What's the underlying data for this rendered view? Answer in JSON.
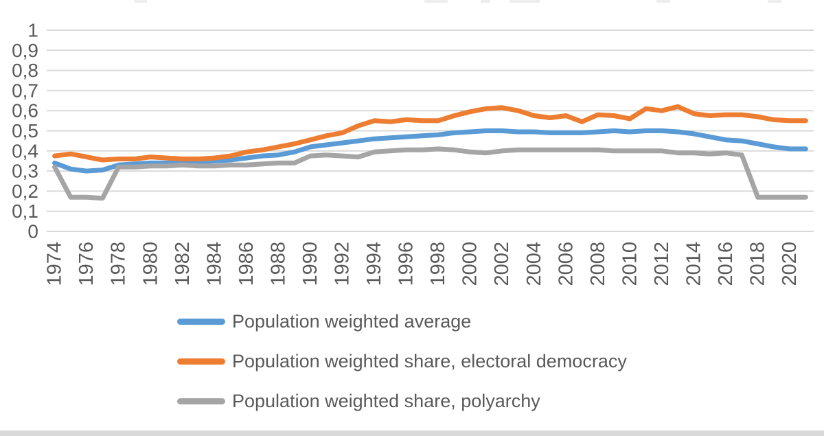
{
  "chart_data": {
    "type": "line",
    "title": "",
    "x": [
      1974,
      1975,
      1976,
      1977,
      1978,
      1979,
      1980,
      1981,
      1982,
      1983,
      1984,
      1985,
      1986,
      1987,
      1988,
      1989,
      1990,
      1991,
      1992,
      1993,
      1994,
      1995,
      1996,
      1997,
      1998,
      1999,
      2000,
      2001,
      2002,
      2003,
      2004,
      2005,
      2006,
      2007,
      2008,
      2009,
      2010,
      2011,
      2012,
      2013,
      2014,
      2015,
      2016,
      2017,
      2018,
      2019,
      2020,
      2021
    ],
    "x_tick_labels": [
      "1974",
      "1976",
      "1978",
      "1980",
      "1982",
      "1984",
      "1986",
      "1988",
      "1990",
      "1992",
      "1994",
      "1996",
      "1998",
      "2000",
      "2002",
      "2004",
      "2006",
      "2008",
      "2010",
      "2012",
      "2014",
      "2016",
      "2018",
      "2020"
    ],
    "y_tick_labels": [
      "1",
      "0,9",
      "0,8",
      "0,7",
      "0,6",
      "0,5",
      "0,4",
      "0,3",
      "0,2",
      "0,1",
      "0"
    ],
    "y_tick_values": [
      1,
      0.9,
      0.8,
      0.7,
      0.6,
      0.5,
      0.4,
      0.3,
      0.2,
      0.1,
      0
    ],
    "ylim": [
      0,
      1
    ],
    "grid": "horizontal",
    "legend_position": "bottom-left",
    "decimal_separator": ",",
    "series": [
      {
        "name": "Population weighted average",
        "color": "#5B9BD5",
        "values": [
          0.34,
          0.31,
          0.3,
          0.305,
          0.33,
          0.335,
          0.34,
          0.34,
          0.345,
          0.345,
          0.35,
          0.355,
          0.365,
          0.375,
          0.38,
          0.395,
          0.42,
          0.43,
          0.44,
          0.45,
          0.46,
          0.465,
          0.47,
          0.475,
          0.48,
          0.49,
          0.495,
          0.5,
          0.5,
          0.495,
          0.495,
          0.49,
          0.49,
          0.49,
          0.495,
          0.5,
          0.495,
          0.5,
          0.5,
          0.495,
          0.485,
          0.47,
          0.455,
          0.45,
          0.435,
          0.42,
          0.41,
          0.41
        ]
      },
      {
        "name": "Population weighted share, electoral democracy",
        "color": "#ED7D31",
        "values": [
          0.375,
          0.385,
          0.37,
          0.355,
          0.36,
          0.36,
          0.37,
          0.365,
          0.36,
          0.36,
          0.365,
          0.375,
          0.395,
          0.405,
          0.42,
          0.435,
          0.455,
          0.475,
          0.49,
          0.525,
          0.55,
          0.545,
          0.555,
          0.55,
          0.55,
          0.575,
          0.595,
          0.61,
          0.615,
          0.6,
          0.575,
          0.565,
          0.575,
          0.545,
          0.58,
          0.575,
          0.56,
          0.61,
          0.6,
          0.62,
          0.585,
          0.575,
          0.58,
          0.58,
          0.57,
          0.555,
          0.55,
          0.55
        ]
      },
      {
        "name": "Population weighted share, polyarchy",
        "color": "#A5A5A5",
        "values": [
          0.32,
          0.17,
          0.17,
          0.165,
          0.32,
          0.32,
          0.325,
          0.325,
          0.33,
          0.325,
          0.325,
          0.33,
          0.33,
          0.335,
          0.34,
          0.34,
          0.375,
          0.38,
          0.375,
          0.37,
          0.395,
          0.4,
          0.405,
          0.405,
          0.41,
          0.405,
          0.395,
          0.39,
          0.4,
          0.405,
          0.405,
          0.405,
          0.405,
          0.405,
          0.405,
          0.4,
          0.4,
          0.4,
          0.4,
          0.39,
          0.39,
          0.385,
          0.39,
          0.38,
          0.17,
          0.17,
          0.17,
          0.17
        ]
      }
    ]
  },
  "page": {
    "background": "#ffffff",
    "axis_text_color": "#595959",
    "gridline_color": "#d9d9d9",
    "bottom_bar_color": "#d9d9d9"
  }
}
